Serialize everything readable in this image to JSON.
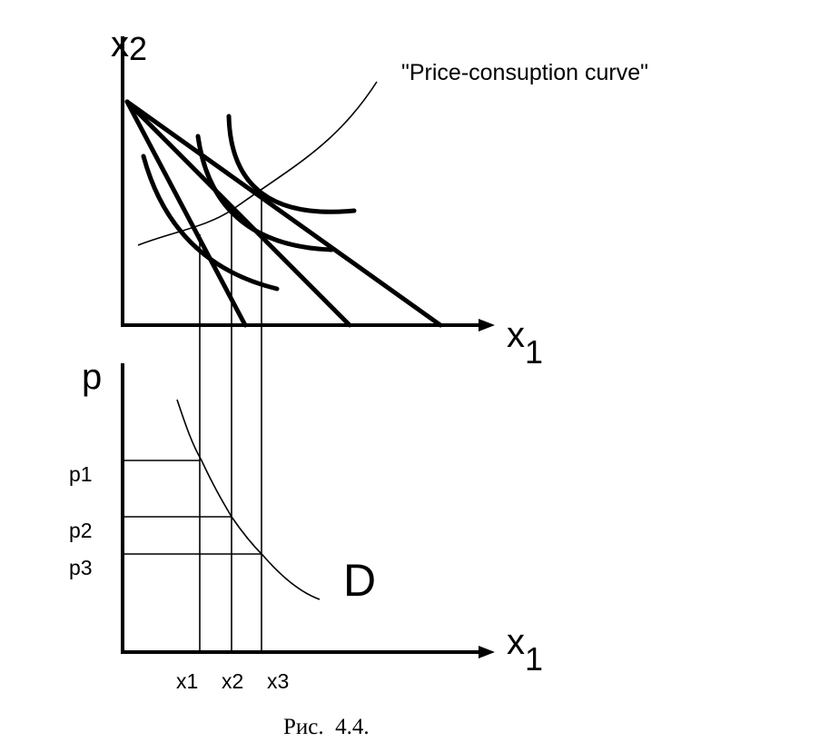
{
  "top_panel": {
    "y_axis_label": {
      "base": "x",
      "sub": "2"
    },
    "x_axis_label": {
      "base": "x",
      "sub": "1"
    },
    "annotation": "\"Price-consuption curve\""
  },
  "bottom_panel": {
    "y_axis_label": "p",
    "price_labels": [
      "p1",
      "p2",
      "p3"
    ],
    "quantity_labels": [
      "x1",
      "x2",
      "x3"
    ],
    "x_axis_label": {
      "base": "x",
      "sub": "1"
    },
    "curve_label": "D"
  },
  "caption": "Рис.  4.4."
}
